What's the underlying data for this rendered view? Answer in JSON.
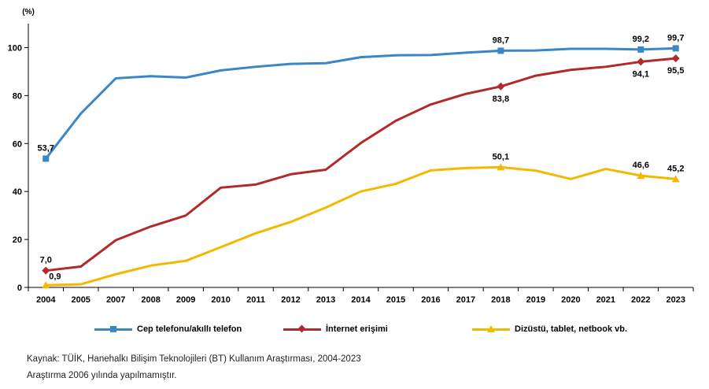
{
  "chart_data": {
    "type": "line",
    "ylabel": "(%)",
    "ylim": [
      0,
      110
    ],
    "yticks": [
      "0",
      "20",
      "40",
      "60",
      "80",
      "100"
    ],
    "ytick_values": [
      0,
      20,
      40,
      60,
      80,
      100
    ],
    "categories": [
      "2004",
      "2005",
      "2007",
      "2008",
      "2009",
      "2010",
      "2011",
      "2012",
      "2013",
      "2014",
      "2015",
      "2016",
      "2017",
      "2018",
      "2019",
      "2020",
      "2021",
      "2022",
      "2023"
    ],
    "grid": false,
    "legend_position": "bottom",
    "series": [
      {
        "name": "Cep telefonu/akıllı telefon",
        "color": "#3a87c8",
        "marker": "square",
        "values": [
          53.7,
          72.5,
          87.2,
          88.1,
          87.5,
          90.5,
          92.0,
          93.2,
          93.5,
          96.0,
          96.8,
          96.9,
          97.9,
          98.7,
          98.8,
          99.5,
          99.5,
          99.2,
          99.7
        ],
        "labels": [
          {
            "index": 0,
            "text": "53,7",
            "pos": "above"
          },
          {
            "index": 13,
            "text": "98,7",
            "pos": "above"
          },
          {
            "index": 17,
            "text": "99,2",
            "pos": "above"
          },
          {
            "index": 18,
            "text": "99,7",
            "pos": "above"
          }
        ]
      },
      {
        "name": "İnternet erişimi",
        "color": "#b22a2a",
        "marker": "diamond",
        "values": [
          7.0,
          8.7,
          19.7,
          25.4,
          30.0,
          41.6,
          42.9,
          47.2,
          49.1,
          60.2,
          69.5,
          76.3,
          80.7,
          83.8,
          88.3,
          90.7,
          92.0,
          94.1,
          95.5
        ],
        "labels": [
          {
            "index": 0,
            "text": "7,0",
            "pos": "above"
          },
          {
            "index": 13,
            "text": "83,8",
            "pos": "below"
          },
          {
            "index": 17,
            "text": "94,1",
            "pos": "below"
          },
          {
            "index": 18,
            "text": "95,5",
            "pos": "below"
          }
        ]
      },
      {
        "name": "Dizüstü, tablet, netbook vb.",
        "color": "#f4b800",
        "marker": "triangle",
        "values": [
          0.9,
          1.3,
          5.5,
          9.1,
          11.1,
          16.8,
          22.6,
          27.3,
          33.3,
          40.0,
          43.2,
          48.8,
          49.8,
          50.1,
          48.7,
          45.2,
          49.4,
          46.6,
          45.2
        ],
        "labels": [
          {
            "index": 0,
            "text": "0,9",
            "pos": "aboveright"
          },
          {
            "index": 13,
            "text": "50,1",
            "pos": "above"
          },
          {
            "index": 17,
            "text": "46,6",
            "pos": "above"
          },
          {
            "index": 18,
            "text": "45,2",
            "pos": "above"
          }
        ]
      }
    ]
  },
  "footnotes": {
    "source": "Kaynak: TÜİK, Hanehalkı Bilişim Teknolojileri (BT) Kullanım Araştırması, 2004-2023",
    "note": "Araştırma 2006 yılında yapılmamıştır."
  }
}
